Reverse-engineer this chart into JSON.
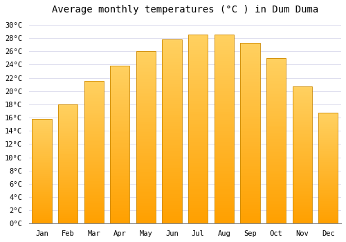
{
  "title": "Average monthly temperatures (°C ) in Dum Duma",
  "months": [
    "Jan",
    "Feb",
    "Mar",
    "Apr",
    "May",
    "Jun",
    "Jul",
    "Aug",
    "Sep",
    "Oct",
    "Nov",
    "Dec"
  ],
  "values": [
    15.8,
    18.0,
    21.5,
    23.8,
    26.0,
    27.8,
    28.5,
    28.5,
    27.3,
    25.0,
    20.7,
    16.7
  ],
  "bar_color_bottom": "#FFA500",
  "bar_color_top": "#FFD580",
  "bar_edge_color": "#CC8800",
  "ylim": [
    0,
    31
  ],
  "yticks": [
    0,
    2,
    4,
    6,
    8,
    10,
    12,
    14,
    16,
    18,
    20,
    22,
    24,
    26,
    28,
    30
  ],
  "background_color": "#FFFFFF",
  "plot_bg_color": "#FFFFFF",
  "grid_color": "#DDDDEE",
  "title_fontsize": 10,
  "tick_fontsize": 7.5,
  "bar_width": 0.75
}
